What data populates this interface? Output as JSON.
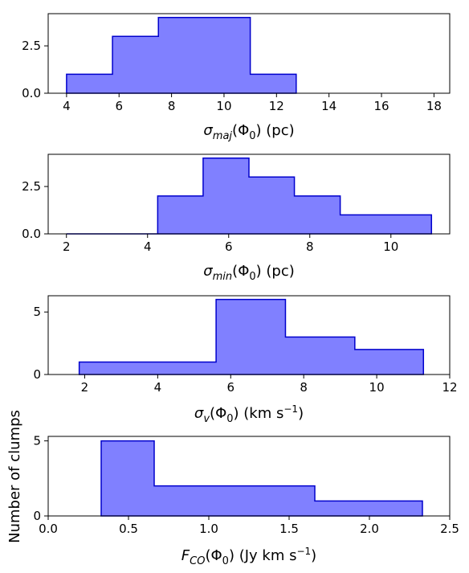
{
  "chart_data": [
    {
      "type": "histogram",
      "xlabel": {
        "sym": "σ",
        "sub": "maj",
        "arg": "Φ",
        "argsub": "0",
        "unit": " (pc)"
      },
      "xlim": [
        3.3,
        18.6
      ],
      "ylim": [
        0,
        4.2
      ],
      "xticks": [
        4,
        6,
        8,
        10,
        12,
        14,
        16,
        18
      ],
      "xtick_labels": [
        "4",
        "6",
        "8",
        "10",
        "12",
        "14",
        "16",
        "18"
      ],
      "yticks": [
        0,
        2.5
      ],
      "ytick_labels": [
        "0.0",
        "2.5"
      ],
      "bin_edges": [
        4.0,
        5.75,
        7.5,
        9.25,
        11.0,
        12.75
      ],
      "counts": [
        1,
        3,
        4,
        4,
        1
      ],
      "fill_color": "#8080ff",
      "edge_color": "#0000cc"
    },
    {
      "type": "histogram",
      "xlabel": {
        "sym": "σ",
        "sub": "min",
        "arg": "Φ",
        "argsub": "0",
        "unit": " (pc)"
      },
      "xlim": [
        1.55,
        11.45
      ],
      "ylim": [
        0,
        4.2
      ],
      "xticks": [
        2,
        4,
        6,
        8,
        10
      ],
      "xtick_labels": [
        "2",
        "4",
        "6",
        "8",
        "10"
      ],
      "yticks": [
        0,
        2.5
      ],
      "ytick_labels": [
        "0.0",
        "2.5"
      ],
      "bin_edges": [
        2.0,
        3.12,
        4.25,
        5.37,
        6.5,
        7.62,
        8.75,
        11.0
      ],
      "counts": [
        0,
        0,
        2,
        4,
        3,
        2,
        1
      ],
      "fill_color": "#8080ff",
      "edge_color": "#0000cc"
    },
    {
      "type": "histogram",
      "xlabel": {
        "sym": "σ",
        "sub": "v",
        "arg": "Φ",
        "argsub": "0",
        "unit": " (km s",
        "unit_sup": "−1",
        "unit_end": ")"
      },
      "xlim": [
        1.0,
        12.0
      ],
      "ylim": [
        0,
        6.3
      ],
      "xticks": [
        2,
        4,
        6,
        8,
        10,
        12
      ],
      "xtick_labels": [
        "2",
        "4",
        "6",
        "8",
        "10",
        "12"
      ],
      "yticks": [
        0,
        5
      ],
      "ytick_labels": [
        "0",
        "5"
      ],
      "bin_edges": [
        1.85,
        5.6,
        7.5,
        9.4,
        11.28
      ],
      "counts": [
        1,
        6,
        3,
        2
      ],
      "fill_color": "#8080ff",
      "edge_color": "#0000cc"
    },
    {
      "type": "histogram",
      "xlabel": {
        "sym": "F",
        "sub": "CO",
        "arg": "Φ",
        "argsub": "0",
        "unit": " (Jy km s",
        "unit_sup": "−1",
        "unit_end": ")"
      },
      "xlim": [
        0.0,
        2.5
      ],
      "ylim": [
        0,
        5.3
      ],
      "xticks": [
        0.0,
        0.5,
        1.0,
        1.5,
        2.0,
        2.5
      ],
      "xtick_labels": [
        "0.0",
        "0.5",
        "1.0",
        "1.5",
        "2.0",
        "2.5"
      ],
      "yticks": [
        0,
        5
      ],
      "ytick_labels": [
        "0",
        "5"
      ],
      "bin_edges": [
        0.33,
        0.66,
        1.0,
        1.33,
        1.66,
        2.0,
        2.33
      ],
      "counts": [
        5,
        2,
        2,
        2,
        1,
        1
      ],
      "fill_color": "#8080ff",
      "edge_color": "#0000cc"
    }
  ],
  "shared_ylabel": "Number of clumps"
}
